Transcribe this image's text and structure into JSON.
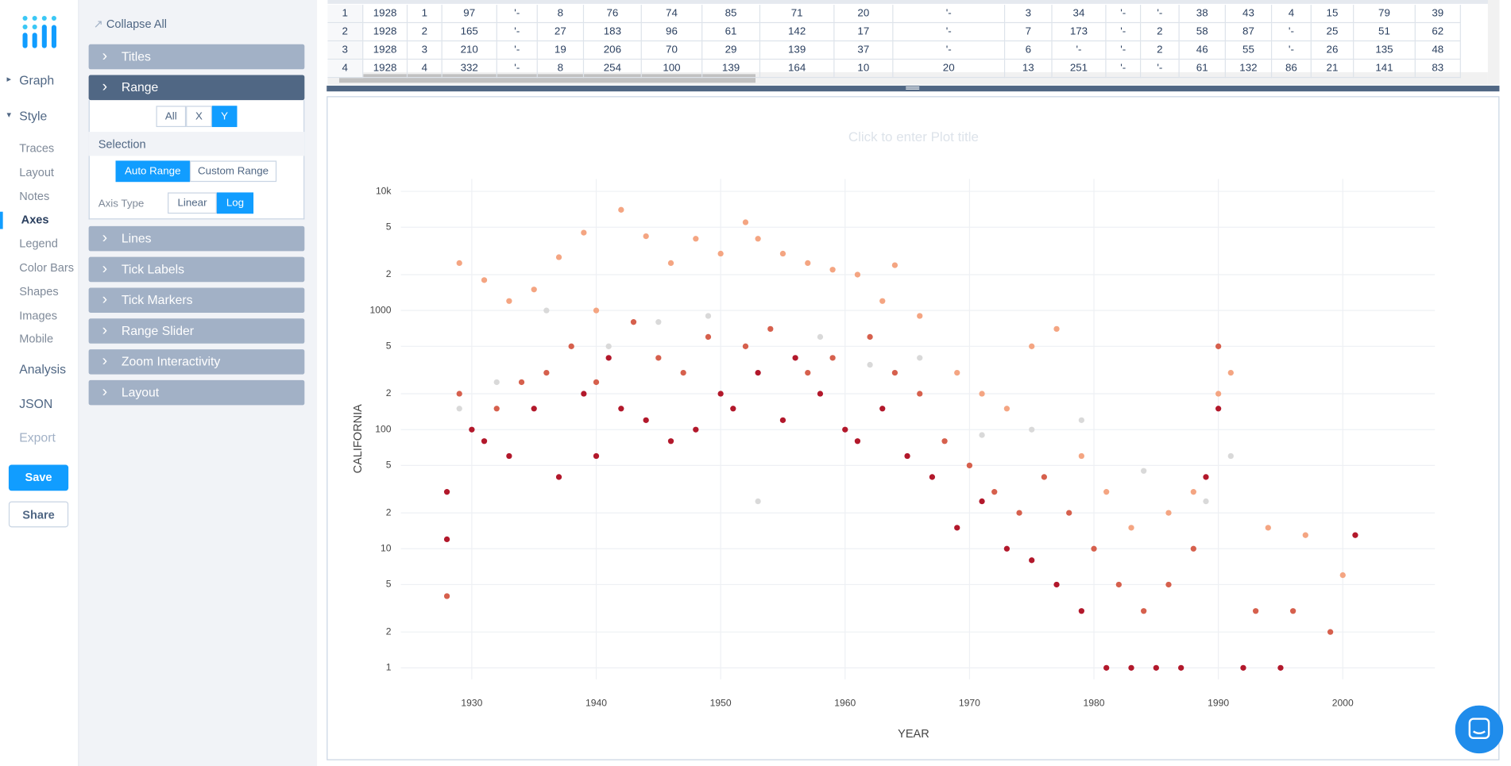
{
  "sidebar": {
    "nav": [
      "Graph",
      "Style"
    ],
    "style_items": [
      "Traces",
      "Layout",
      "Notes",
      "Axes",
      "Legend",
      "Color Bars",
      "Shapes",
      "Images",
      "Mobile"
    ],
    "lower": [
      "Analysis",
      "JSON",
      "Export"
    ],
    "buttons": [
      "Save",
      "Share"
    ]
  },
  "panel": {
    "collapse_all": "Collapse All",
    "sections": [
      "Titles",
      "Range",
      "Lines",
      "Tick Labels",
      "Tick Markers",
      "Range Slider",
      "Zoom Interactivity",
      "Layout"
    ],
    "range": {
      "axis_toggle": [
        "All",
        "X",
        "Y"
      ],
      "selection_label": "Selection",
      "selection": [
        "Auto Range",
        "Custom Range"
      ],
      "axis_type_label": "Axis Type",
      "axis_type": [
        "Linear",
        "Log"
      ]
    }
  },
  "table": {
    "rows": [
      [
        1,
        1928,
        1,
        97,
        "'-",
        8,
        76,
        74,
        85,
        71,
        20,
        "'-",
        3,
        34,
        "'-",
        "'-",
        38,
        43,
        4,
        15,
        79,
        39
      ],
      [
        2,
        1928,
        2,
        165,
        "'-",
        27,
        183,
        96,
        61,
        142,
        17,
        "'-",
        7,
        173,
        "'-",
        2,
        58,
        87,
        "'-",
        25,
        51,
        62
      ],
      [
        3,
        1928,
        3,
        210,
        "'-",
        19,
        206,
        70,
        29,
        139,
        37,
        "'-",
        6,
        "'-",
        "'-",
        2,
        46,
        55,
        "'-",
        26,
        135,
        48
      ],
      [
        4,
        1928,
        4,
        332,
        "'-",
        8,
        254,
        100,
        139,
        164,
        10,
        20,
        13,
        251,
        "'-",
        "'-",
        61,
        132,
        86,
        21,
        141,
        83
      ]
    ]
  },
  "chart_data": {
    "type": "scatter",
    "title": "Click to enter Plot title",
    "x_label": "YEAR",
    "y_label": "CALIFORNIA",
    "y_scale": "log",
    "grid": true,
    "xlim": [
      1924.3,
      2007.4
    ],
    "xticks": [
      1930,
      1940,
      1950,
      1960,
      1970,
      1980,
      1990,
      2000
    ],
    "ylim": [
      0.8,
      12700
    ],
    "yticks": [
      1,
      2,
      5,
      10,
      {
        "value": 20,
        "label": "2"
      },
      {
        "value": 50,
        "label": "5"
      },
      100,
      {
        "value": 200,
        "label": "2"
      },
      {
        "value": 500,
        "label": "5"
      },
      1000,
      {
        "value": 2000,
        "label": "2"
      },
      {
        "value": 5000,
        "label": "5"
      },
      {
        "value": 10000,
        "label": "10k"
      }
    ],
    "series": [
      {
        "color": "#d9d9d9",
        "x": [
          1929,
          1932,
          1936,
          1941,
          1945,
          1949,
          1953,
          1958,
          1962,
          1966,
          1971,
          1975,
          1979,
          1984,
          1989,
          1991
        ],
        "values": [
          150,
          250,
          1000,
          500,
          800,
          900,
          25,
          600,
          350,
          400,
          90,
          100,
          120,
          45,
          25,
          60
        ]
      },
      {
        "color": "#f4a582",
        "x": [
          1929,
          1931,
          1933,
          1935,
          1937,
          1939,
          1940,
          1942,
          1944,
          1946,
          1948,
          1950,
          1952,
          1953,
          1955,
          1957,
          1959,
          1961,
          1963,
          1964,
          1966,
          1969,
          1971,
          1973,
          1975,
          1977,
          1979,
          1981,
          1983,
          1986,
          1988,
          1990,
          1991,
          1994,
          1997,
          2000
        ],
        "values": [
          2500,
          1800,
          1200,
          1500,
          2800,
          4500,
          1000,
          7000,
          4200,
          2500,
          4000,
          3000,
          5500,
          4000,
          3000,
          2500,
          2200,
          2000,
          1200,
          2400,
          900,
          300,
          200,
          150,
          500,
          700,
          60,
          30,
          15,
          20,
          30,
          200,
          300,
          15,
          13,
          6
        ]
      },
      {
        "color": "#d6604d",
        "x": [
          1928,
          1929,
          1932,
          1934,
          1936,
          1938,
          1940,
          1943,
          1945,
          1947,
          1949,
          1952,
          1954,
          1957,
          1959,
          1962,
          1964,
          1966,
          1968,
          1970,
          1972,
          1974,
          1976,
          1978,
          1980,
          1982,
          1984,
          1986,
          1988,
          1990,
          1993,
          1996,
          1999
        ],
        "values": [
          4,
          200,
          150,
          250,
          300,
          500,
          250,
          800,
          400,
          300,
          600,
          500,
          700,
          300,
          400,
          600,
          300,
          200,
          80,
          50,
          30,
          20,
          40,
          20,
          10,
          5,
          3,
          5,
          10,
          500,
          3,
          3,
          2
        ]
      },
      {
        "color": "#b2182b",
        "x": [
          1928,
          1928,
          1930,
          1931,
          1933,
          1935,
          1937,
          1939,
          1940,
          1941,
          1942,
          1944,
          1946,
          1948,
          1950,
          1951,
          1953,
          1955,
          1956,
          1958,
          1960,
          1961,
          1963,
          1965,
          1967,
          1969,
          1971,
          1973,
          1975,
          1977,
          1979,
          1981,
          1983,
          1985,
          1987,
          1989,
          1990,
          1992,
          1995,
          2001
        ],
        "values": [
          12,
          30,
          100,
          80,
          60,
          150,
          40,
          200,
          60,
          400,
          150,
          120,
          80,
          100,
          200,
          150,
          300,
          120,
          400,
          200,
          100,
          80,
          150,
          60,
          40,
          15,
          25,
          10,
          8,
          5,
          3,
          1,
          1,
          1,
          1,
          40,
          150,
          1,
          1,
          13
        ]
      }
    ]
  }
}
